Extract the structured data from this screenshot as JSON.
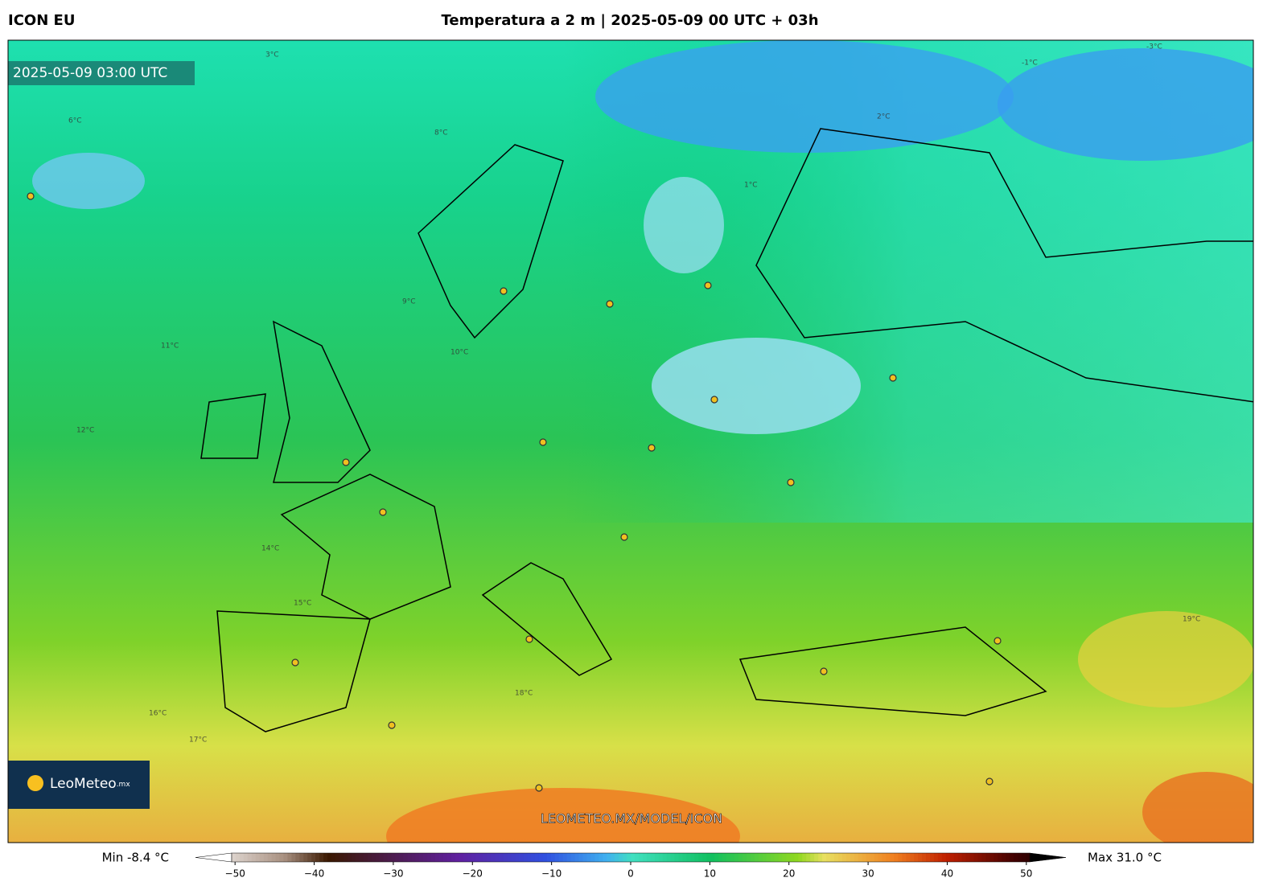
{
  "header": {
    "left": "ICON EU",
    "title": "Temperatura a 2 m | 2025-05-09 00 UTC + 03h"
  },
  "map": {
    "timestamp": "2025-05-09 03:00 UTC",
    "logo": {
      "name": "LeoMeteo",
      "suffix": ".mx"
    },
    "watermark": "LEOMETEO.MX/MODEL/ICON",
    "contour_labels": [
      "3°C",
      "-3°C",
      "6°C",
      "8°C",
      "9°C",
      "10°C",
      "11°C",
      "12°C",
      "14°C",
      "15°C",
      "16°C",
      "17°C",
      "18°C",
      "19°C",
      "-1°C",
      "1°C",
      "2°C"
    ]
  },
  "colorbar": {
    "min_label": "Min -8.4 °C",
    "max_label": "Max 31.0 °C",
    "lim": [
      -55,
      55
    ],
    "ticks": [
      {
        "value": -50,
        "label": "−50"
      },
      {
        "value": -40,
        "label": "−40"
      },
      {
        "value": -30,
        "label": "−30"
      },
      {
        "value": -20,
        "label": "−20"
      },
      {
        "value": -10,
        "label": "−10"
      },
      0,
      10,
      20,
      30,
      40,
      50
    ]
  }
}
